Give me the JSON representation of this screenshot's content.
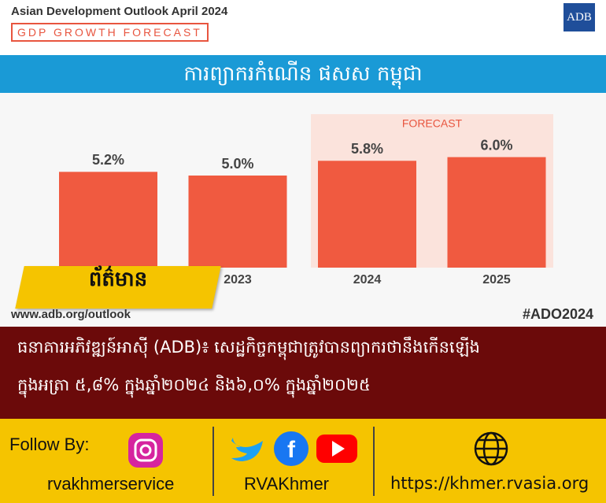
{
  "header": {
    "title": "Asian Development Outlook April 2024",
    "subtitle": "GDP GROWTH FORECAST",
    "logo": "ADB",
    "banner": "ការព្យាករកំណើន ផសស កម្ពុជា"
  },
  "chart_data": {
    "type": "bar",
    "categories": [
      null,
      "2023",
      "2024",
      "2025"
    ],
    "values": [
      5.2,
      5.0,
      5.8,
      6.0
    ],
    "value_labels": [
      "5.2%",
      "5.0%",
      "5.8%",
      "6.0%"
    ],
    "color": "#f05a40",
    "annotation": "FORECAST"
  },
  "badge": "ព័ត៌មាន",
  "source": {
    "url": "www.adb.org/outlook",
    "hashtag": "#ADO2024"
  },
  "caption": {
    "line1": "ធនាគារអភិវឌ្ឍន៍អាស៊ី (ADB)៖ សេដ្ឋកិច្ចកម្ពុជាត្រូវបានព្យាករថានឹងកើនឡើង",
    "line2": "ក្នុងអត្រា ៥,៨% ក្នុងឆ្នាំ២០២៤ និង៦,០% ក្នុងឆ្នាំ២០២៥"
  },
  "footer": {
    "follow": "Follow By:",
    "instagram": "rvakhmerservice",
    "social": "RVAKhmer",
    "website": "https://khmer.rvasia.org"
  }
}
